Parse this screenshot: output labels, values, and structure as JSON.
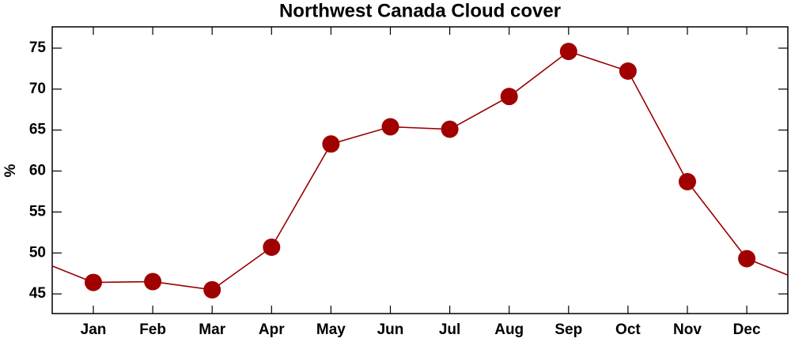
{
  "chart_data": {
    "type": "line",
    "title": "Northwest Canada Cloud cover",
    "y_label": "%",
    "categories": [
      "Jan",
      "Feb",
      "Mar",
      "Apr",
      "May",
      "Jun",
      "Jul",
      "Aug",
      "Sep",
      "Oct",
      "Nov",
      "Dec"
    ],
    "values": [
      46.4,
      46.5,
      45.5,
      50.7,
      63.3,
      65.4,
      65.1,
      69.1,
      74.6,
      72.2,
      58.7,
      49.3
    ],
    "color": "#990000",
    "marker_color": "#a00000",
    "ylim": [
      42.6,
      77.6
    ],
    "yticks": [
      45,
      50,
      55,
      60,
      65,
      70,
      75
    ],
    "grid": false
  }
}
